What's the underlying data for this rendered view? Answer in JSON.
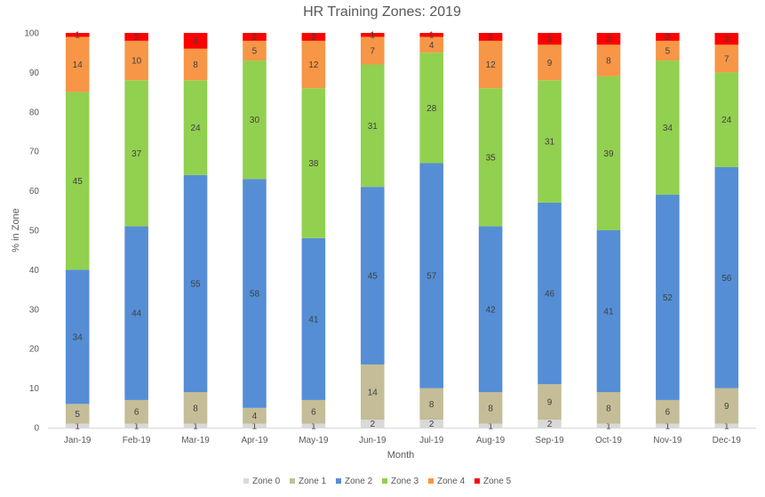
{
  "chart_data": {
    "type": "bar",
    "stacked": true,
    "title": "HR Training Zones: 2019",
    "xlabel": "Month",
    "ylabel": "% in Zone",
    "ylim": [
      0,
      100
    ],
    "yticks": [
      0,
      10,
      20,
      30,
      40,
      50,
      60,
      70,
      80,
      90,
      100
    ],
    "grid": false,
    "legend_position": "bottom",
    "categories": [
      "Jan-19",
      "Feb-19",
      "Mar-19",
      "Apr-19",
      "May-19",
      "Jun-19",
      "Jul-19",
      "Aug-19",
      "Sep-19",
      "Oct-19",
      "Nov-19",
      "Dec-19"
    ],
    "series": [
      {
        "name": "Zone 0",
        "color": "#D9D9D9",
        "values": [
          1,
          1,
          1,
          1,
          1,
          2,
          2,
          1,
          2,
          1,
          1,
          1
        ]
      },
      {
        "name": "Zone 1",
        "color": "#C4BD97",
        "values": [
          5,
          6,
          8,
          4,
          6,
          14,
          8,
          8,
          9,
          8,
          6,
          9
        ]
      },
      {
        "name": "Zone 2",
        "color": "#558ED5",
        "values": [
          34,
          44,
          55,
          58,
          41,
          45,
          57,
          42,
          46,
          41,
          52,
          56
        ]
      },
      {
        "name": "Zone 3",
        "color": "#92D050",
        "values": [
          45,
          37,
          24,
          30,
          38,
          31,
          28,
          35,
          31,
          39,
          34,
          24
        ]
      },
      {
        "name": "Zone 4",
        "color": "#F79646",
        "values": [
          14,
          10,
          8,
          5,
          12,
          7,
          4,
          12,
          9,
          8,
          5,
          7
        ]
      },
      {
        "name": "Zone 5",
        "color": "#FF0000",
        "values": [
          1,
          2,
          4,
          2,
          2,
          1,
          1,
          2,
          3,
          3,
          2,
          3
        ]
      }
    ]
  }
}
